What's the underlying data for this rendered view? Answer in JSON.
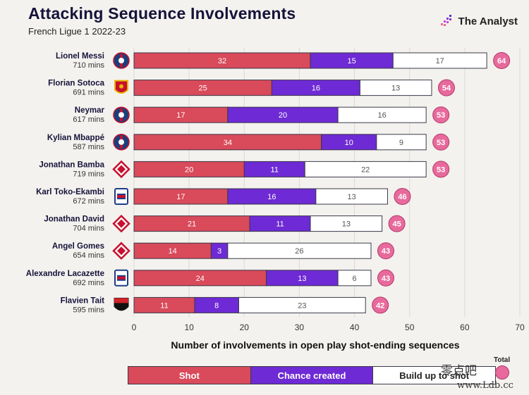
{
  "title": "Attacking Sequence Involvements",
  "subtitle": "French Ligue 1 2022-23",
  "brand": "The Analyst",
  "watermark": "零点吧",
  "watermark_url": "www.Ldb.cc",
  "chart_data": {
    "type": "bar",
    "orientation": "horizontal",
    "stacked": true,
    "xlabel": "Number of involvements in open play shot-ending sequences",
    "xlim": [
      0,
      70
    ],
    "xticks": [
      0,
      10,
      20,
      30,
      40,
      50,
      60,
      70
    ],
    "categories": [
      {
        "name": "Lionel Messi",
        "mins": "710 mins",
        "club": "PSG"
      },
      {
        "name": "Florian Sotoca",
        "mins": "691 mins",
        "club": "Lens"
      },
      {
        "name": "Neymar",
        "mins": "617 mins",
        "club": "PSG"
      },
      {
        "name": "Kylian Mbappé",
        "mins": "587 mins",
        "club": "PSG"
      },
      {
        "name": "Jonathan Bamba",
        "mins": "719 mins",
        "club": "Lille"
      },
      {
        "name": "Karl Toko-Ekambi",
        "mins": "672 mins",
        "club": "Lyon"
      },
      {
        "name": "Jonathan David",
        "mins": "704 mins",
        "club": "Lille"
      },
      {
        "name": "Angel Gomes",
        "mins": "654 mins",
        "club": "Lille"
      },
      {
        "name": "Alexandre Lacazette",
        "mins": "692 mins",
        "club": "Lyon"
      },
      {
        "name": "Flavien Tait",
        "mins": "595 mins",
        "club": "Rennes"
      }
    ],
    "series": [
      {
        "name": "Shot",
        "color": "#d94a5a",
        "values": [
          32,
          25,
          17,
          34,
          20,
          17,
          21,
          14,
          24,
          11
        ]
      },
      {
        "name": "Chance created",
        "color": "#6e2ad4",
        "values": [
          15,
          16,
          20,
          10,
          11,
          16,
          11,
          3,
          13,
          8
        ]
      },
      {
        "name": "Build up to shot",
        "color": "#ffffff",
        "values": [
          17,
          13,
          16,
          9,
          22,
          13,
          13,
          26,
          6,
          23
        ]
      }
    ],
    "totals": [
      64,
      54,
      53,
      53,
      53,
      46,
      45,
      43,
      43,
      42
    ],
    "total_label": "Total",
    "total_color": "#e86a9c"
  },
  "legend": {
    "shot": "Shot",
    "chance": "Chance created",
    "build": "Build up to shot"
  },
  "club_colors": {
    "PSG": "#1c3f7a",
    "Lens": "#e8b500",
    "Lille": "#c8102e",
    "Lyon": "#1d3e8a",
    "Rennes": "#d1232a"
  }
}
